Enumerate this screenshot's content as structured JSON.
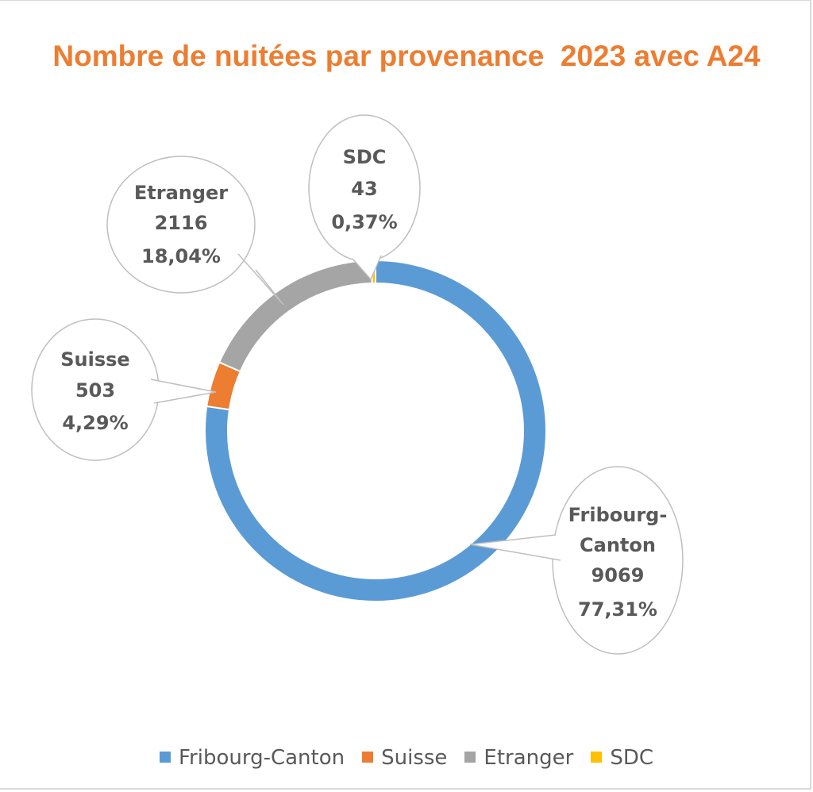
{
  "chart_data": {
    "type": "pie",
    "donut": true,
    "title": "Nombre de nuitées par provenance  2023 avec A24",
    "title_color": "#ED7D31",
    "series": [
      {
        "name": "Fribourg-Canton",
        "value": 9069,
        "percent": "77,31%",
        "color": "#5B9BD5",
        "label_lines": [
          "Fribourg-",
          "Canton",
          "9069",
          "77,31%"
        ]
      },
      {
        "name": "Suisse",
        "value": 503,
        "percent": "4,29%",
        "color": "#ED7D31",
        "label_lines": [
          "Suisse",
          "503",
          "4,29%"
        ]
      },
      {
        "name": "Etranger",
        "value": 2116,
        "percent": "18,04%",
        "color": "#A5A5A5",
        "label_lines": [
          "Etranger",
          "2116",
          "18,04%"
        ]
      },
      {
        "name": "SDC",
        "value": 43,
        "percent": "0,37%",
        "color": "#FFC000",
        "label_lines": [
          "SDC",
          "43",
          "0,37%"
        ]
      }
    ],
    "legend_position": "bottom"
  }
}
